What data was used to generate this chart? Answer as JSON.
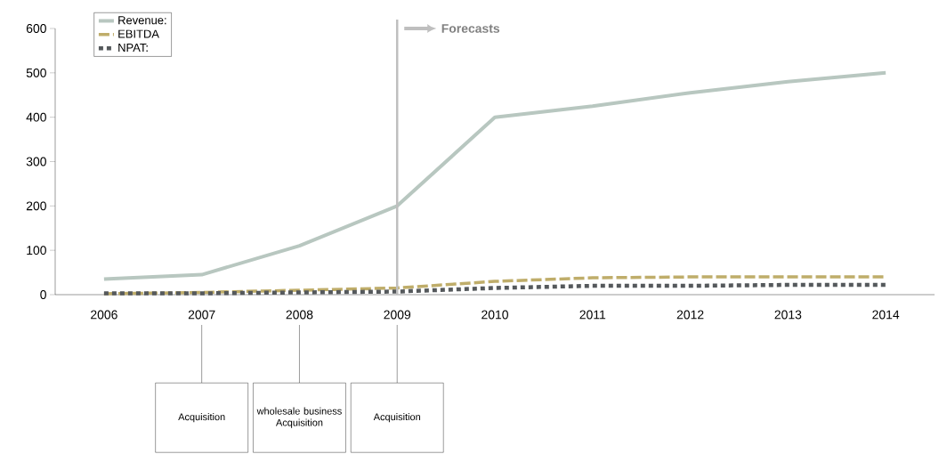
{
  "chart_data": {
    "type": "line",
    "categories": [
      "2006",
      "2007",
      "2008",
      "2009",
      "2010",
      "2011",
      "2012",
      "2013",
      "2014"
    ],
    "series": [
      {
        "name": "Revenue:",
        "color": "#b8c7c0",
        "line_style": "solid",
        "values": [
          35,
          45,
          110,
          200,
          400,
          425,
          455,
          480,
          500
        ]
      },
      {
        "name": "EBITDA",
        "color": "#bfad6a",
        "line_style": "dashed",
        "values": [
          2,
          5,
          10,
          15,
          30,
          38,
          40,
          40,
          40
        ]
      },
      {
        "name": "NPAT:",
        "color": "#55595c",
        "line_style": "dotted",
        "values": [
          3,
          3,
          5,
          7,
          15,
          20,
          20,
          22,
          22
        ]
      }
    ],
    "ylim": [
      0,
      600
    ],
    "yticks": [
      0,
      100,
      200,
      300,
      400,
      500,
      600
    ],
    "grid": false,
    "legend": "top left",
    "marker": "none",
    "ref_lines": [
      {
        "axis": "x",
        "value": "2009",
        "label": "Forecasts",
        "color": "#bfbfbf"
      }
    ],
    "annotations": [
      "Acquisition",
      "wholesale business Acquisition",
      "Acquisition"
    ]
  }
}
